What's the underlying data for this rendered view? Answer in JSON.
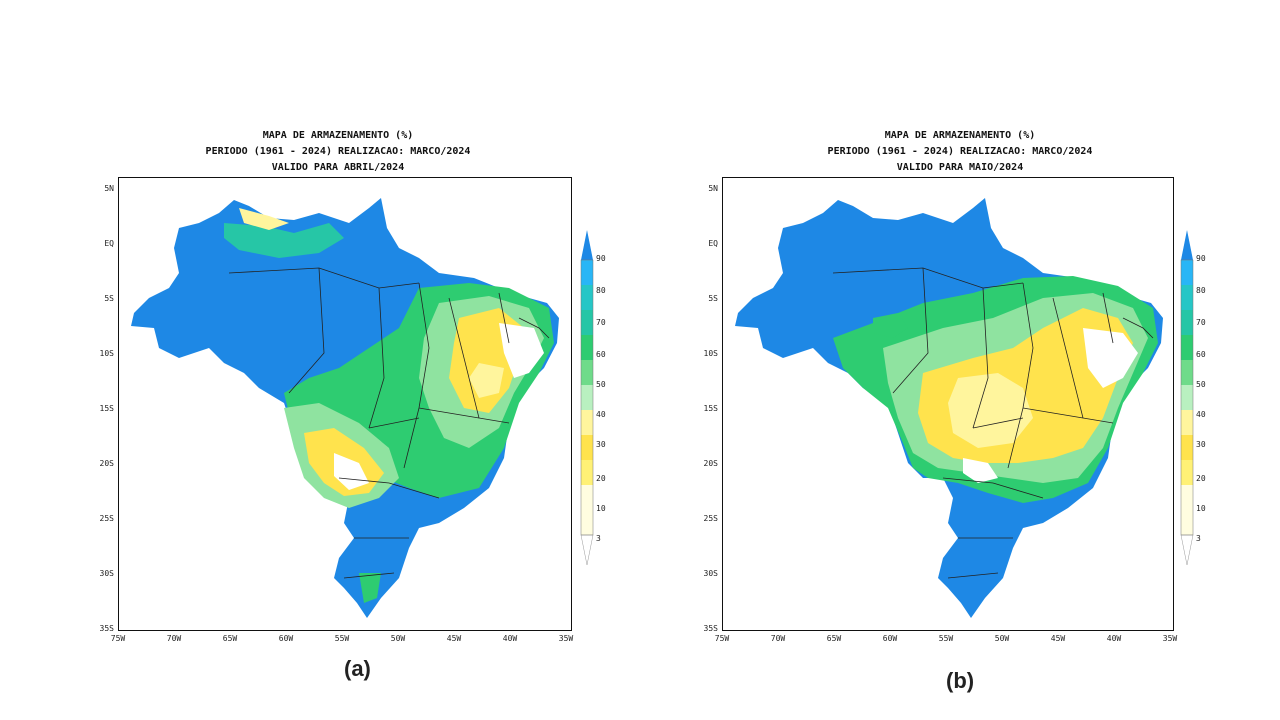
{
  "colors": {
    "blue": "#1e88e5",
    "light_blue": "#29b6f6",
    "teal": "#26c6a6",
    "green": "#2ecc71",
    "light_green": "#8fe3a0",
    "pale_yellow": "#fff59d",
    "yellow": "#ffe34d",
    "white": "#ffffff"
  },
  "colorbar": {
    "levels": [
      "90",
      "80",
      "70",
      "60",
      "50",
      "40",
      "30",
      "20",
      "10",
      "3"
    ]
  },
  "axes": {
    "y_ticks": [
      "5N",
      "EQ",
      "5S",
      "10S",
      "15S",
      "20S",
      "25S",
      "30S",
      "35S"
    ],
    "x_ticks": [
      "75W",
      "70W",
      "65W",
      "60W",
      "55W",
      "50W",
      "45W",
      "40W",
      "35W"
    ]
  },
  "panels": [
    {
      "id": "a",
      "title_lines": [
        "MAPA DE ARMAZENAMENTO (%)",
        "PERIODO (1961 - 2024) REALIZACAO: MARCO/2024",
        "VALIDO PARA ABRIL/2024"
      ],
      "label": "(a)"
    },
    {
      "id": "b",
      "title_lines": [
        "MAPA DE ARMAZENAMENTO (%)",
        "PERIODO (1961 - 2024) REALIZACAO: MARCO/2024",
        "VALIDO PARA MAIO/2024"
      ],
      "label": "(b)"
    }
  ]
}
